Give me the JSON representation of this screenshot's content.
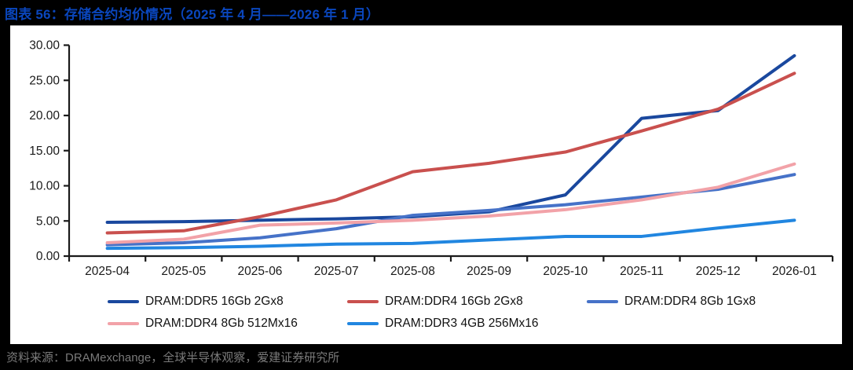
{
  "header": {
    "title": "图表 56：存储合约均价情况（2025 年 4 月——2026 年 1 月）"
  },
  "footer": {
    "source": "资料来源：DRAMexchange，全球半导体观察，爱建证券研究所"
  },
  "colors": {
    "background": "#000000",
    "panel": "#ffffff",
    "title_blue": "#0a46bd",
    "axis": "#1a1a1a",
    "tick_label": "#1a1a1a",
    "source_gray": "#7a7a7a",
    "ddr5_navy": "#1a489e",
    "ddr4_16gb_red": "#c9504e",
    "ddr4_8gb_blue": "#4672c8",
    "ddr4_512m_pink": "#f2a2a8",
    "ddr3_bright_blue": "#2186e0"
  },
  "chart_data": {
    "type": "line",
    "title": "存储合约均价情况（2025 年 4 月——2026 年 1 月）",
    "xlabel": "",
    "ylabel": "",
    "x": [
      "2025-04",
      "2025-05",
      "2025-06",
      "2025-07",
      "2025-08",
      "2025-09",
      "2025-10",
      "2025-11",
      "2025-12",
      "2026-01"
    ],
    "series": [
      {
        "name": "DRAM:DDR5 16Gb 2Gx8",
        "color": "#1a489e",
        "values": [
          4.8,
          4.9,
          5.1,
          5.3,
          5.6,
          6.3,
          8.7,
          19.6,
          20.7,
          28.5
        ]
      },
      {
        "name": "DRAM:DDR4 16Gb 2Gx8",
        "color": "#c9504e",
        "values": [
          3.3,
          3.6,
          5.6,
          8.0,
          12.0,
          13.2,
          14.8,
          17.8,
          20.9,
          26.0
        ]
      },
      {
        "name": "DRAM:DDR4 8Gb 1Gx8",
        "color": "#4672c8",
        "values": [
          1.6,
          1.9,
          2.6,
          3.9,
          5.8,
          6.5,
          7.3,
          8.4,
          9.5,
          11.6
        ]
      },
      {
        "name": "DRAM:DDR4 8Gb 512Mx16",
        "color": "#f2a2a8",
        "values": [
          1.9,
          2.4,
          4.4,
          4.7,
          5.1,
          5.7,
          6.6,
          8.0,
          9.8,
          13.1
        ]
      },
      {
        "name": "DRAM:DDR3 4GB 256Mx16",
        "color": "#2186e0",
        "values": [
          1.1,
          1.2,
          1.4,
          1.7,
          1.8,
          2.3,
          2.8,
          2.8,
          4.0,
          5.1
        ]
      }
    ],
    "ylim": [
      0,
      30
    ],
    "yticks": [
      0,
      5,
      10,
      15,
      20,
      25,
      30
    ],
    "ytick_labels": [
      "0.00",
      "5.00",
      "10.00",
      "15.00",
      "20.00",
      "25.00",
      "30.00"
    ],
    "grid": false,
    "legend_position": "bottom"
  }
}
